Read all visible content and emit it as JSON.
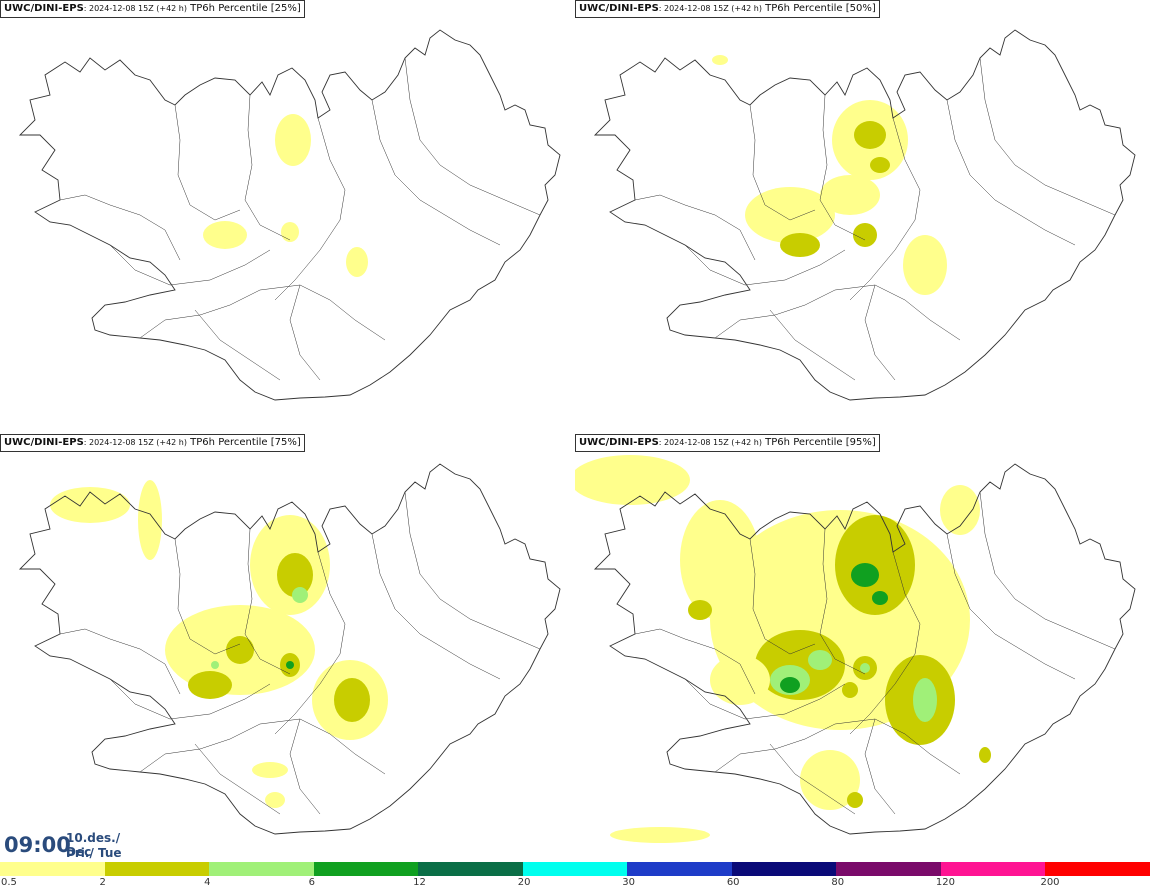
{
  "panels": [
    {
      "model": "UWC/DINI-EPS",
      "meta": ": 2024-12-08 15Z (+42 h)",
      "product": "TP6h Percentile [25%]"
    },
    {
      "model": "UWC/DINI-EPS",
      "meta": ": 2024-12-08 15Z (+42 h)",
      "product": "TP6h Percentile [50%]"
    },
    {
      "model": "UWC/DINI-EPS",
      "meta": ": 2024-12-08 15Z (+42 h)",
      "product": "TP6h Percentile [75%]"
    },
    {
      "model": "UWC/DINI-EPS",
      "meta": ": 2024-12-08 15Z (+42 h)",
      "product": "TP6h Percentile [95%]"
    }
  ],
  "valid_time": {
    "clock": "09:00",
    "date_line1": "10.des./ Dec",
    "date_line2": "Þri./ Tue"
  },
  "legend": {
    "ticks": [
      "0.5",
      "2",
      "4",
      "6",
      "12",
      "20",
      "30",
      "60",
      "80",
      "120",
      "200"
    ],
    "colors": [
      "#ffff8c",
      "#c8cd00",
      "#a0f078",
      "#10a020",
      "#0a6e46",
      "#00ffee",
      "#1e3cc8",
      "#0a0a78",
      "#7a0a6a",
      "#ff1493",
      "#ff0000"
    ]
  },
  "map_colors": {
    "light": "#ffff8c",
    "medium": "#c8cd00",
    "high": "#a0f078",
    "top": "#10a020",
    "outline": "#333333"
  }
}
